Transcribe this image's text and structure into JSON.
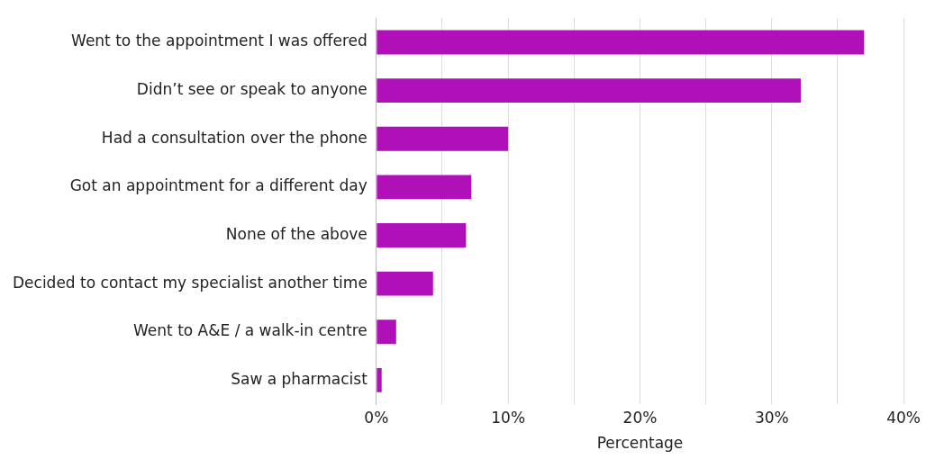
{
  "chart_data": {
    "type": "bar",
    "orientation": "horizontal",
    "xlabel": "Percentage",
    "categories": [
      "Went to the appointment I was offered",
      "Didn’t see or speak to anyone",
      "Had a consultation over the phone",
      "Got an appointment for a different day",
      "None of the above",
      "Decided to contact my specialist another time",
      "Went to A&E / a walk-in centre",
      "Saw a pharmacist"
    ],
    "values": [
      37.0,
      32.2,
      10.0,
      7.2,
      6.8,
      4.3,
      1.5,
      0.4
    ],
    "color": "#b010b8",
    "xlim": [
      0,
      40
    ],
    "xticks": [
      {
        "value": 0,
        "label": "0%"
      },
      {
        "value": 5,
        "label": null
      },
      {
        "value": 10,
        "label": "10%"
      },
      {
        "value": 15,
        "label": null
      },
      {
        "value": 20,
        "label": "20%"
      },
      {
        "value": 25,
        "label": null
      },
      {
        "value": 30,
        "label": "30%"
      },
      {
        "value": 35,
        "label": null
      },
      {
        "value": 40,
        "label": "40%"
      }
    ],
    "grid": "x",
    "legend": false
  }
}
